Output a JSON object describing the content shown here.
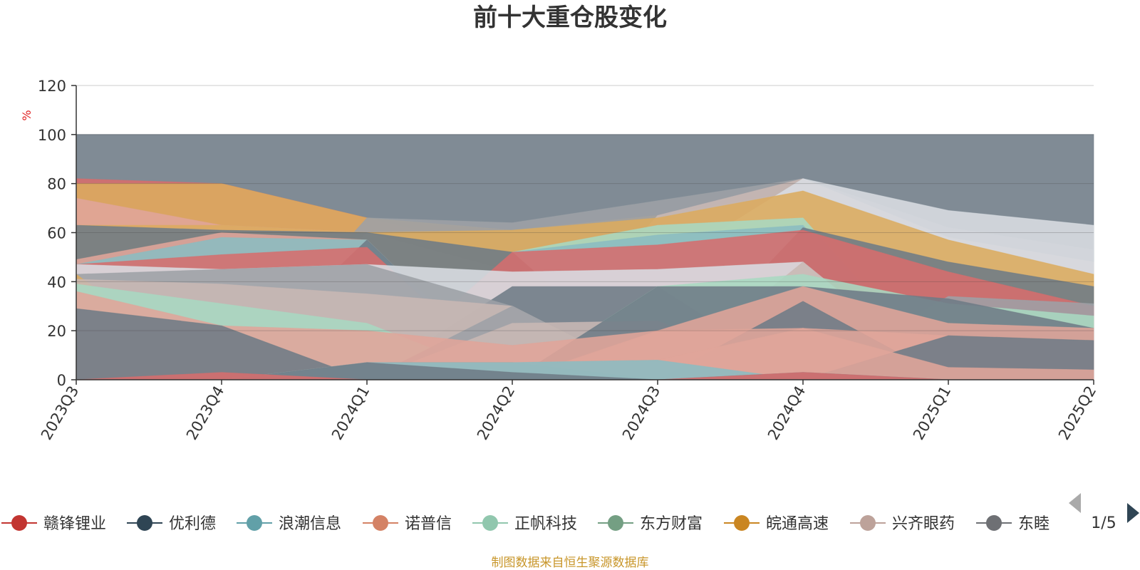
{
  "chart_data": {
    "type": "area",
    "title": "前十大重仓股变化",
    "ylabel": "%",
    "ylim": [
      0,
      120
    ],
    "y_ticks": [
      0,
      20,
      40,
      60,
      80,
      100,
      120
    ],
    "grid": true,
    "legend_position": "bottom",
    "categories": [
      "2023Q3",
      "2023Q4",
      "2024Q1",
      "2024Q2",
      "2024Q3",
      "2024Q4",
      "2025Q1",
      "2025Q2"
    ],
    "layers": [
      {
        "color": "#6e7b86",
        "lower": [
          0,
          0,
          0,
          0,
          0,
          0,
          0,
          0
        ],
        "upper": [
          100,
          100,
          100,
          100,
          100,
          100,
          100,
          100
        ]
      },
      {
        "color": "#d66d6d",
        "lower": [
          0,
          0,
          0,
          0,
          0,
          0,
          0,
          0
        ],
        "upper": [
          82,
          80,
          66,
          52,
          55,
          61,
          44,
          30
        ]
      },
      {
        "color": "#dcab5e",
        "lower": [
          0,
          0,
          0,
          0,
          0,
          0,
          0,
          0
        ],
        "upper": [
          80,
          80,
          66,
          61,
          67,
          77,
          57,
          40
        ]
      },
      {
        "color": "#e0a59a",
        "lower": [
          0,
          0,
          0,
          0,
          0,
          0,
          0,
          0
        ],
        "upper": [
          74,
          63,
          60,
          52,
          0,
          0,
          0,
          0
        ]
      },
      {
        "color": "#9da1a6",
        "lower": [
          0,
          0,
          0,
          0,
          0,
          0,
          0,
          0
        ],
        "upper": [
          0,
          0,
          66,
          64,
          73,
          82,
          62,
          53
        ]
      },
      {
        "color": "#c8b8b4",
        "lower": [
          0,
          0,
          0,
          0,
          0,
          0,
          0,
          0
        ],
        "upper": [
          0,
          0,
          0,
          0,
          67,
          82,
          58,
          48
        ]
      },
      {
        "color": "#d9dde3",
        "lower": [
          0,
          0,
          0,
          0,
          0,
          0,
          0,
          0
        ],
        "upper": [
          0,
          0,
          60,
          44,
          45,
          82,
          69,
          63
        ]
      },
      {
        "color": "#dcab5e",
        "lower": [
          0,
          0,
          0,
          0,
          0,
          0,
          0,
          0
        ],
        "upper": [
          63,
          63,
          60,
          61,
          66,
          77,
          57,
          43
        ]
      },
      {
        "color": "#a9d8c1",
        "lower": [
          0,
          0,
          0,
          0,
          0,
          0,
          0,
          0
        ],
        "upper": [
          0,
          0,
          0,
          52,
          63,
          66,
          0,
          0
        ]
      },
      {
        "color": "#8bbcc2",
        "lower": [
          0,
          0,
          0,
          0,
          0,
          0,
          0,
          0
        ],
        "upper": [
          0,
          0,
          0,
          52,
          59,
          63,
          0,
          0
        ]
      },
      {
        "color": "#6e7b86",
        "lower": [
          0,
          0,
          0,
          0,
          0,
          0,
          0,
          0
        ],
        "upper": [
          63,
          61,
          60,
          52,
          0,
          62,
          48,
          38
        ]
      },
      {
        "color": "#d66d6d",
        "lower": [
          0,
          0,
          0,
          0,
          0,
          0,
          0,
          0
        ],
        "upper": [
          0,
          0,
          0,
          52,
          55,
          61,
          44,
          30
        ]
      },
      {
        "color": "#e0a59a",
        "lower": [
          0,
          0,
          0,
          0,
          0,
          0,
          0,
          0
        ],
        "upper": [
          49,
          60,
          57,
          0,
          0,
          0,
          0,
          0
        ]
      },
      {
        "color": "#8bbcc2",
        "lower": [
          0,
          0,
          0,
          0,
          0,
          0,
          0,
          0
        ],
        "upper": [
          47,
          58,
          57,
          0,
          0,
          0,
          0,
          0
        ]
      },
      {
        "color": "#6e7b86",
        "lower": [
          0,
          0,
          0,
          0,
          0,
          0,
          0,
          0
        ],
        "upper": [
          0,
          0,
          57,
          0,
          0,
          0,
          0,
          0
        ]
      },
      {
        "color": "#d66d6d",
        "lower": [
          0,
          0,
          0,
          0,
          0,
          0,
          0,
          0
        ],
        "upper": [
          47,
          51,
          54,
          0,
          0,
          0,
          33,
          30
        ]
      },
      {
        "color": "#d9dde3",
        "lower": [
          0,
          0,
          0,
          0,
          0,
          0,
          0,
          0
        ],
        "upper": [
          47,
          45,
          47,
          44,
          45,
          48,
          0,
          0
        ]
      },
      {
        "color": "#6e7b86",
        "lower": [
          0,
          0,
          0,
          0,
          0,
          0,
          0,
          0
        ],
        "upper": [
          0,
          0,
          0,
          38,
          38,
          0,
          0,
          0
        ]
      },
      {
        "color": "#9da1a6",
        "lower": [
          0,
          0,
          0,
          0,
          0,
          0,
          0,
          0
        ],
        "upper": [
          43,
          45,
          47,
          30,
          0,
          0,
          34,
          31
        ]
      },
      {
        "color": "#dcab5e",
        "lower": [
          0,
          0,
          0,
          0,
          0,
          0,
          0,
          0
        ],
        "upper": [
          43,
          0,
          0,
          0,
          0,
          0,
          0,
          0
        ]
      },
      {
        "color": "#c8b8b4",
        "lower": [
          0,
          0,
          0,
          0,
          0,
          0,
          0,
          0
        ],
        "upper": [
          41,
          39,
          35,
          30,
          0,
          48,
          0,
          0
        ]
      },
      {
        "color": "#a9d8c1",
        "lower": [
          0,
          0,
          0,
          0,
          0,
          0,
          0,
          0
        ],
        "upper": [
          39,
          31,
          23,
          0,
          38,
          43,
          31,
          26
        ]
      },
      {
        "color": "#9da1a6",
        "lower": [
          0,
          0,
          0,
          0,
          0,
          0,
          0,
          0
        ],
        "upper": [
          0,
          0,
          0,
          30,
          0,
          0,
          0,
          0
        ]
      },
      {
        "color": "#c8b8b4",
        "lower": [
          0,
          0,
          0,
          0,
          0,
          0,
          0,
          0
        ],
        "upper": [
          0,
          0,
          0,
          23,
          24,
          0,
          0,
          0
        ]
      },
      {
        "color": "#6e7b86",
        "lower": [
          0,
          0,
          0,
          0,
          0,
          0,
          0,
          0
        ],
        "upper": [
          0,
          0,
          0,
          0,
          38,
          38,
          33,
          21
        ]
      },
      {
        "color": "#e0a59a",
        "lower": [
          0,
          0,
          0,
          0,
          0,
          0,
          0,
          0
        ],
        "upper": [
          36,
          22,
          20,
          14,
          20,
          38,
          23,
          21
        ]
      },
      {
        "color": "#6e7b86",
        "lower": [
          0,
          0,
          0,
          0,
          0,
          0,
          0,
          0
        ],
        "upper": [
          29,
          22,
          0,
          0,
          0,
          32,
          0,
          0
        ]
      },
      {
        "color": "#e0a59a",
        "lower": [
          0,
          0,
          0,
          0,
          0,
          0,
          0,
          0
        ],
        "upper": [
          0,
          0,
          0,
          0,
          20,
          21,
          18,
          16
        ]
      },
      {
        "color": "#6e7b86",
        "lower": [
          0,
          0,
          0,
          0,
          0,
          0,
          0,
          0
        ],
        "upper": [
          0,
          0,
          7,
          7,
          0,
          0,
          18,
          16
        ]
      },
      {
        "color": "#e0a59a",
        "lower": [
          0,
          0,
          0,
          0,
          0,
          0,
          0,
          0
        ],
        "upper": [
          0,
          0,
          7,
          7,
          8,
          21,
          5,
          4
        ]
      },
      {
        "color": "#8bbcc2",
        "lower": [
          0,
          0,
          0,
          0,
          0,
          0,
          0,
          0
        ],
        "upper": [
          0,
          0,
          7,
          7,
          8,
          0,
          0,
          0
        ]
      },
      {
        "color": "#6e7b86",
        "lower": [
          0,
          0,
          0,
          0,
          0,
          0,
          0,
          0
        ],
        "upper": [
          0,
          0,
          7,
          3,
          0,
          3,
          0,
          0
        ]
      },
      {
        "color": "#d66d6d",
        "lower": [
          0,
          0,
          0,
          0,
          0,
          0,
          0,
          0
        ],
        "upper": [
          0,
          3,
          0,
          0,
          0,
          3,
          0,
          0
        ]
      }
    ],
    "legend": [
      {
        "name": "赣锋锂业",
        "color": "#c23531"
      },
      {
        "name": "优利德",
        "color": "#2f4554"
      },
      {
        "name": "浪潮信息",
        "color": "#61a0a8"
      },
      {
        "name": "诺普信",
        "color": "#d48265"
      },
      {
        "name": "正帆科技",
        "color": "#91c7ae"
      },
      {
        "name": "东方财富",
        "color": "#749f83"
      },
      {
        "name": "皖通高速",
        "color": "#ca8622"
      },
      {
        "name": "兴齐眼药",
        "color": "#bda29a"
      },
      {
        "name": "东睦",
        "color": "#6e7074"
      }
    ],
    "legend_page": "1/5",
    "source": "制图数据来自恒生聚源数据库"
  },
  "icons": {
    "prev": "triangle-left-icon",
    "next": "triangle-right-icon"
  }
}
